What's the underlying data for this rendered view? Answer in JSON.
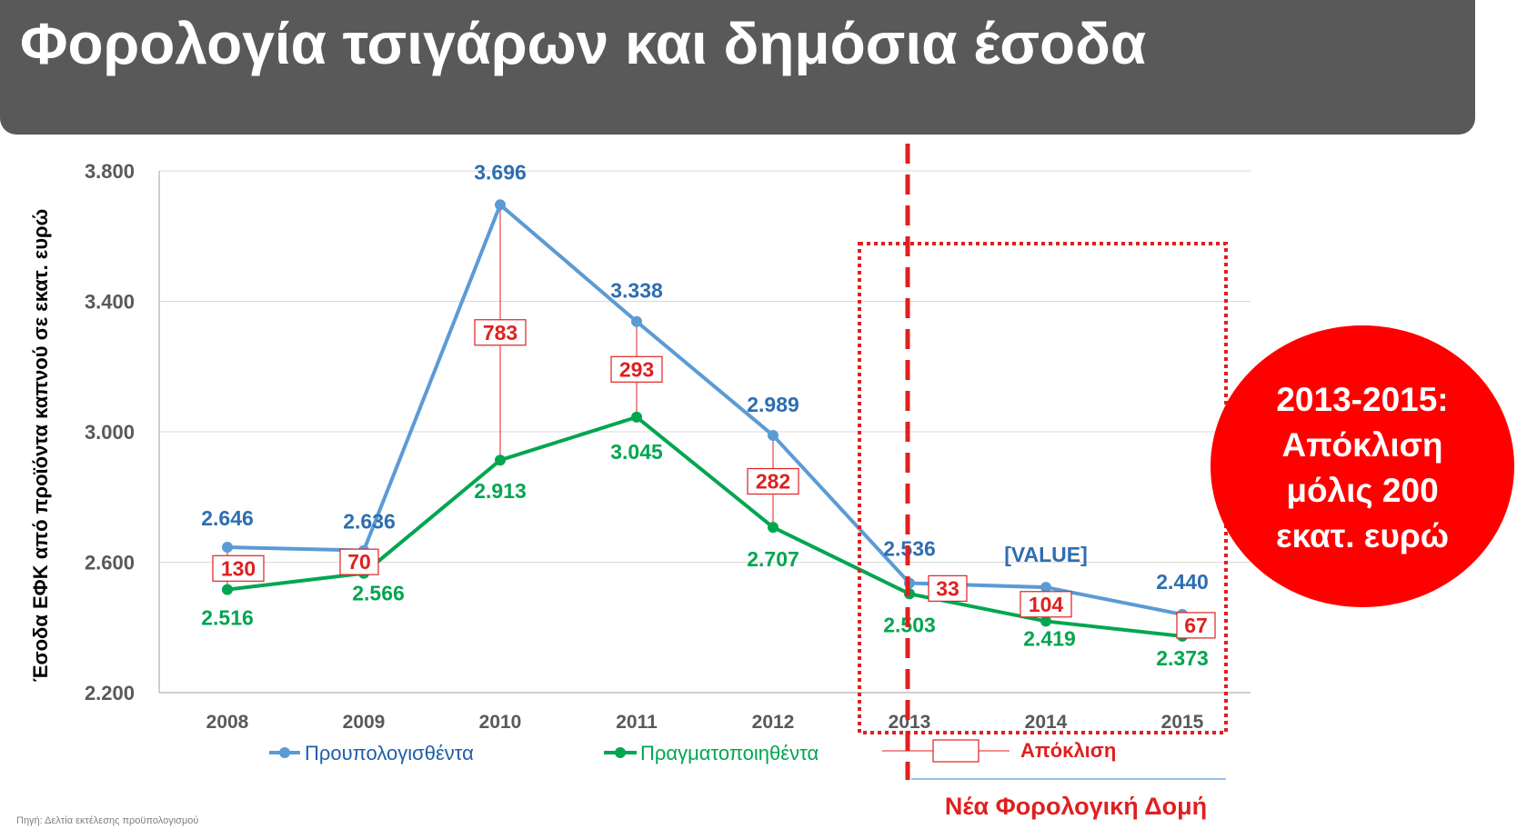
{
  "header": {
    "title": "Φορολογία τσιγάρων και δημόσια έσοδα"
  },
  "source": "Πηγή: Δελτία εκτέλεσης προϋπολογισμού",
  "colors": {
    "budgeted": "#5B9BD5",
    "budgeted_label": "#2E6EB0",
    "realized": "#00A650",
    "deviation": "#E02020",
    "axis_text": "#595959",
    "callout_bg": "#FF0000"
  },
  "callout": {
    "lines": [
      "2013-2015:",
      "Απόκλιση",
      "μόλις 200",
      "εκατ. ευρώ"
    ]
  },
  "new_structure_label": "Νέα Φορολογική Δομή",
  "chart_data": {
    "type": "line",
    "title": "",
    "xlabel": "",
    "ylabel": "Έσοδα ΕΦΚ από προϊόντα καπνού σε εκατ. ευρώ",
    "categories": [
      "2008",
      "2009",
      "2010",
      "2011",
      "2012",
      "2013",
      "2014",
      "2015"
    ],
    "ylim": [
      2200,
      3800
    ],
    "yticks": [
      2200,
      2600,
      3000,
      3400,
      3800
    ],
    "ytick_labels": [
      "2.200",
      "2.600",
      "3.000",
      "3.400",
      "3.800"
    ],
    "grid": true,
    "legend_position": "bottom",
    "series": [
      {
        "name": "Προυπολογισθέντα",
        "values": [
          2646,
          2636,
          3696,
          3338,
          2989,
          2536,
          2523,
          2440
        ],
        "labels": [
          "2.646",
          "2.636",
          "3.696",
          "3.338",
          "2.989",
          "2.536",
          "[VALUE]",
          "2.440"
        ]
      },
      {
        "name": "Πραγματοποιηθέντα",
        "values": [
          2516,
          2566,
          2913,
          3045,
          2707,
          2503,
          2419,
          2373
        ],
        "labels": [
          "2.516",
          "2.566",
          "2.913",
          "3.045",
          "2.707",
          "2.503",
          "2.419",
          "2.373"
        ]
      }
    ],
    "deviation": {
      "name": "Απόκλιση",
      "values": [
        130,
        70,
        783,
        293,
        282,
        33,
        104,
        67
      ]
    },
    "annotations": {
      "structure_change_after": "2012",
      "highlight_range": [
        "2013",
        "2015"
      ]
    }
  }
}
